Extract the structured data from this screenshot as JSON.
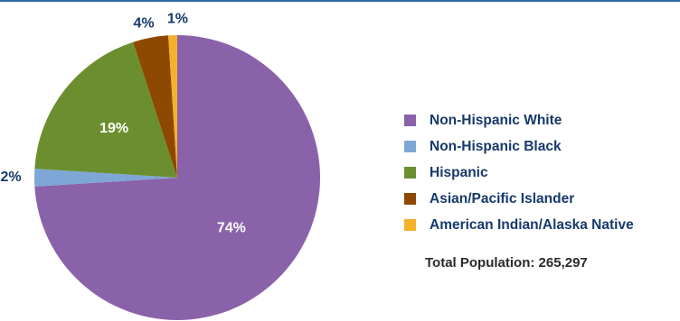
{
  "chart_data": {
    "type": "pie",
    "slices": [
      {
        "name": "Non-Hispanic White",
        "value": 74,
        "label": "74%",
        "color": "#8a62aa"
      },
      {
        "name": "Non-Hispanic Black",
        "value": 2,
        "label": "2%",
        "color": "#7ea6d6"
      },
      {
        "name": "Hispanic",
        "value": 19,
        "label": "19%",
        "color": "#6b8f2e"
      },
      {
        "name": "Asian/Pacific Islander",
        "value": 4,
        "label": "4%",
        "color": "#8f4800"
      },
      {
        "name": "American Indian/Alaska Native",
        "value": 1,
        "label": "1%",
        "color": "#f4b12a"
      }
    ],
    "legend_position": "right",
    "total_label": "Total Population: 265,297"
  },
  "colors": {
    "label_outside": "#163a6b",
    "label_inside": "#ffffff",
    "accent_rule": "#2e6aa6"
  }
}
